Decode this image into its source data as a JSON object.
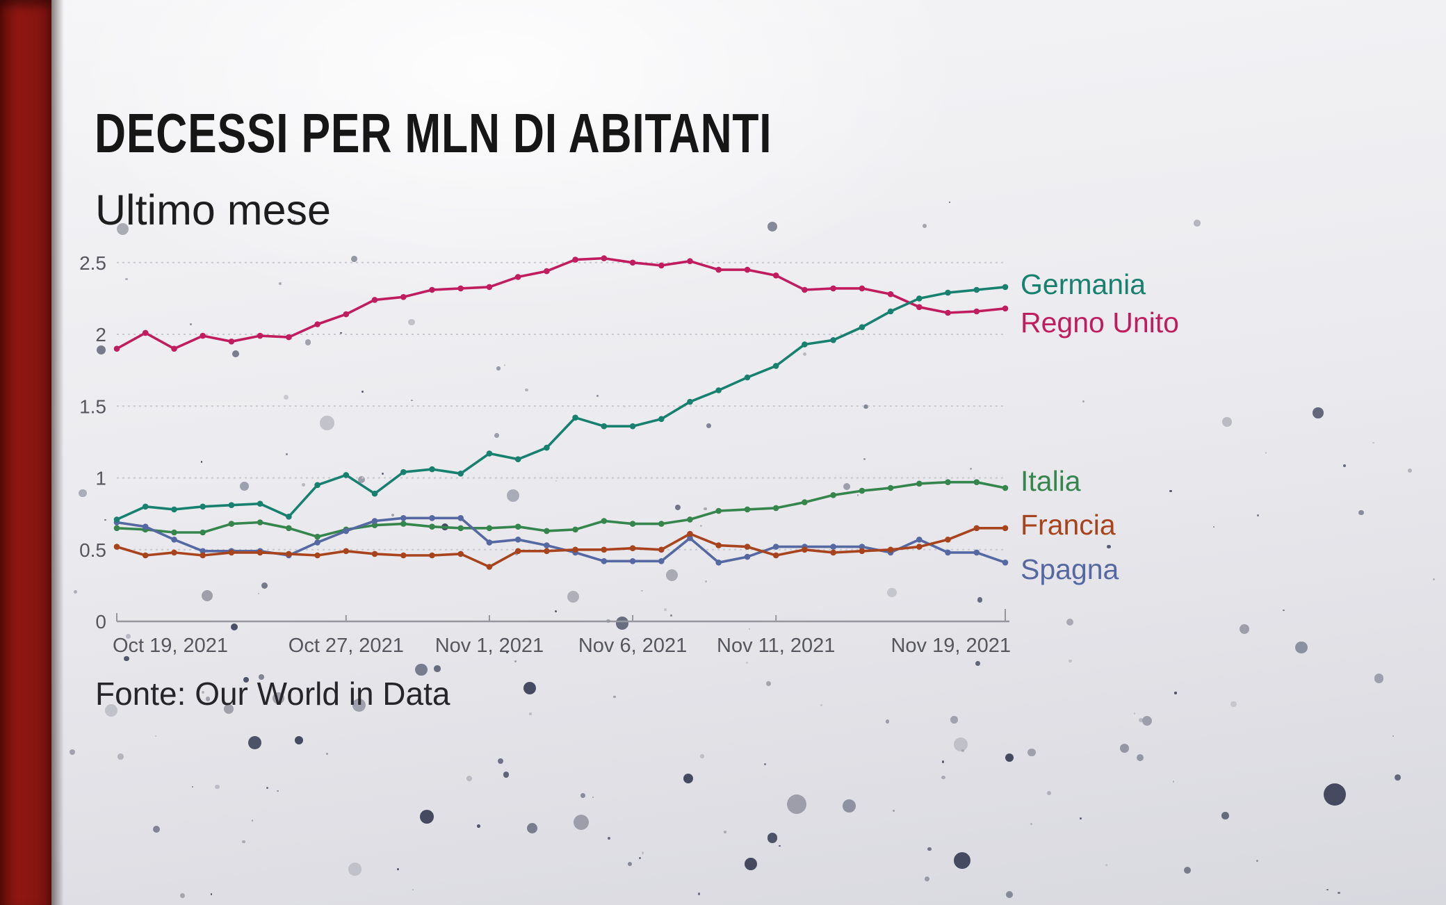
{
  "slide": {
    "title": "DECESSI PER MLN DI ABITANTI",
    "subtitle": "Ultimo mese",
    "source": "Fonte: Our World in Data"
  },
  "theme": {
    "title_color": "#161616",
    "subtitle_color": "#1d1d1d",
    "source_color": "#26262a",
    "accent_bar_color": "#871511",
    "axis_text_color": "#56565e",
    "gridline_color": "#c9c9cf",
    "axis_line_color": "#96969e",
    "speckle_dark": "#343a52",
    "speckle_light": "#9797a3"
  },
  "chart_data": {
    "type": "line",
    "title": "DECESSI PER MLN DI ABITANTI",
    "subtitle": "Ultimo mese",
    "source": "Fonte: Our World in Data",
    "ylim": [
      0,
      2.5
    ],
    "grid": "dotted-horizontal",
    "legend_position": "right",
    "y_ticks": [
      {
        "value": 0,
        "label": "0"
      },
      {
        "value": 0.5,
        "label": "0.5"
      },
      {
        "value": 1,
        "label": "1"
      },
      {
        "value": 1.5,
        "label": "1.5"
      },
      {
        "value": 2,
        "label": "2"
      },
      {
        "value": 2.5,
        "label": "2.5"
      }
    ],
    "x_tick_labels": [
      {
        "index": 0,
        "label": "Oct 19, 2021"
      },
      {
        "index": 8,
        "label": "Oct 27, 2021"
      },
      {
        "index": 13,
        "label": "Nov 1, 2021"
      },
      {
        "index": 18,
        "label": "Nov 6, 2021"
      },
      {
        "index": 23,
        "label": "Nov 11, 2021"
      },
      {
        "index": 31,
        "label": "Nov 19, 2021"
      }
    ],
    "x_dates": [
      "Oct 19, 2021",
      "Oct 20, 2021",
      "Oct 21, 2021",
      "Oct 22, 2021",
      "Oct 23, 2021",
      "Oct 24, 2021",
      "Oct 25, 2021",
      "Oct 26, 2021",
      "Oct 27, 2021",
      "Oct 28, 2021",
      "Oct 29, 2021",
      "Oct 30, 2021",
      "Oct 31, 2021",
      "Nov 1, 2021",
      "Nov 2, 2021",
      "Nov 3, 2021",
      "Nov 4, 2021",
      "Nov 5, 2021",
      "Nov 6, 2021",
      "Nov 7, 2021",
      "Nov 8, 2021",
      "Nov 9, 2021",
      "Nov 10, 2021",
      "Nov 11, 2021",
      "Nov 12, 2021",
      "Nov 13, 2021",
      "Nov 14, 2021",
      "Nov 15, 2021",
      "Nov 16, 2021",
      "Nov 17, 2021",
      "Nov 18, 2021",
      "Nov 19, 2021"
    ],
    "series": [
      {
        "name": "Germania",
        "color": "#17806f",
        "values": [
          0.71,
          0.8,
          0.78,
          0.8,
          0.81,
          0.82,
          0.73,
          0.95,
          1.02,
          0.89,
          1.04,
          1.06,
          1.03,
          1.17,
          1.13,
          1.21,
          1.42,
          1.36,
          1.36,
          1.41,
          1.53,
          1.61,
          1.7,
          1.78,
          1.93,
          1.96,
          2.05,
          2.16,
          2.25,
          2.29,
          2.31,
          2.33
        ]
      },
      {
        "name": "Regno Unito",
        "color": "#c01d5e",
        "values": [
          1.9,
          2.01,
          1.9,
          1.99,
          1.95,
          1.99,
          1.98,
          2.07,
          2.14,
          2.24,
          2.26,
          2.31,
          2.32,
          2.33,
          2.4,
          2.44,
          2.52,
          2.53,
          2.5,
          2.48,
          2.51,
          2.45,
          2.45,
          2.41,
          2.31,
          2.32,
          2.32,
          2.28,
          2.19,
          2.15,
          2.16,
          2.18
        ]
      },
      {
        "name": "Italia",
        "color": "#35854d",
        "values": [
          0.65,
          0.64,
          0.62,
          0.62,
          0.68,
          0.69,
          0.65,
          0.59,
          0.64,
          0.67,
          0.68,
          0.66,
          0.65,
          0.65,
          0.66,
          0.63,
          0.64,
          0.7,
          0.68,
          0.68,
          0.71,
          0.77,
          0.78,
          0.79,
          0.83,
          0.88,
          0.91,
          0.93,
          0.96,
          0.97,
          0.97,
          0.93
        ]
      },
      {
        "name": "Francia",
        "color": "#a8441d",
        "values": [
          0.52,
          0.46,
          0.48,
          0.46,
          0.48,
          0.48,
          0.47,
          0.46,
          0.49,
          0.47,
          0.46,
          0.46,
          0.47,
          0.38,
          0.49,
          0.49,
          0.5,
          0.5,
          0.51,
          0.5,
          0.61,
          0.53,
          0.52,
          0.46,
          0.5,
          0.48,
          0.49,
          0.5,
          0.52,
          0.57,
          0.65,
          0.65
        ]
      },
      {
        "name": "Spagna",
        "color": "#5568a1",
        "values": [
          0.69,
          0.66,
          0.57,
          0.49,
          0.49,
          0.49,
          0.46,
          0.55,
          0.63,
          0.7,
          0.72,
          0.72,
          0.72,
          0.55,
          0.57,
          0.53,
          0.48,
          0.42,
          0.42,
          0.42,
          0.58,
          0.41,
          0.45,
          0.52,
          0.52,
          0.52,
          0.52,
          0.48,
          0.57,
          0.48,
          0.48,
          0.41
        ]
      }
    ]
  }
}
